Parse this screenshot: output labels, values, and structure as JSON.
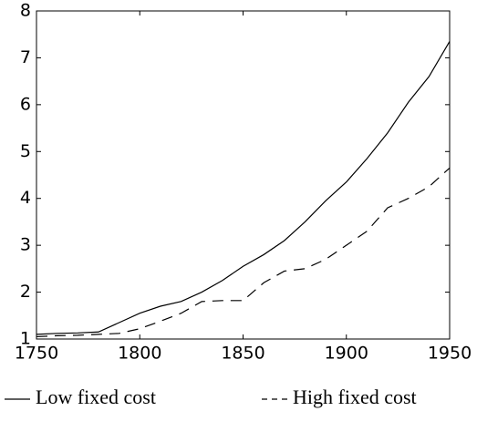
{
  "chart_data": {
    "type": "line",
    "x": [
      1750,
      1760,
      1770,
      1780,
      1790,
      1800,
      1810,
      1820,
      1830,
      1840,
      1850,
      1860,
      1870,
      1880,
      1890,
      1900,
      1910,
      1920,
      1930,
      1940,
      1950
    ],
    "series": [
      {
        "name": "Low fixed cost",
        "color": "#000000",
        "dash": "solid",
        "values": [
          1.1,
          1.12,
          1.13,
          1.15,
          1.35,
          1.55,
          1.7,
          1.8,
          2.0,
          2.25,
          2.55,
          2.8,
          3.1,
          3.5,
          3.95,
          4.35,
          4.85,
          5.4,
          6.05,
          6.6,
          7.35
        ]
      },
      {
        "name": "High fixed cost",
        "color": "#000000",
        "dash": "dashed",
        "values": [
          1.05,
          1.07,
          1.08,
          1.1,
          1.12,
          1.22,
          1.38,
          1.55,
          1.8,
          1.82,
          1.82,
          2.2,
          2.45,
          2.5,
          2.7,
          3.0,
          3.3,
          3.8,
          4.0,
          4.25,
          4.65
        ]
      }
    ],
    "xlim": [
      1750,
      1950
    ],
    "xticks": [
      1750,
      1800,
      1850,
      1900,
      1950
    ],
    "ylim": [
      1,
      8
    ],
    "yticks": [
      1,
      2,
      3,
      4,
      5,
      6,
      7,
      8
    ],
    "grid": false,
    "legend": "bottom"
  }
}
